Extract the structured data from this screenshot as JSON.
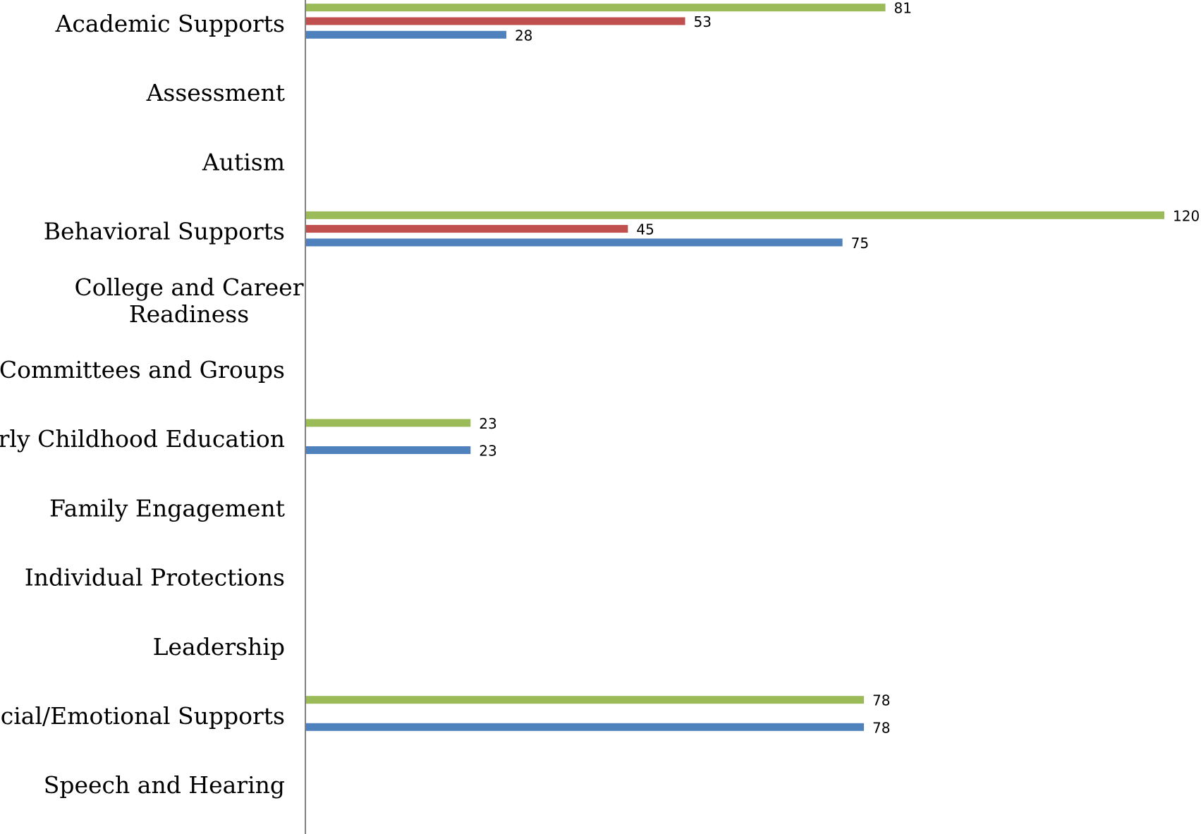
{
  "chart_data": {
    "type": "bar",
    "orientation": "horizontal",
    "categories": [
      [
        "Academic Supports"
      ],
      [
        "Assessment"
      ],
      [
        "Autism"
      ],
      [
        "Behavioral Supports"
      ],
      [
        "College and Career",
        "Readiness"
      ],
      [
        "Committees and Groups"
      ],
      [
        "Early Childhood Education"
      ],
      [
        "Family Engagement"
      ],
      [
        "Individual Protections"
      ],
      [
        "Leadership"
      ],
      [
        "Social/Emotional Supports"
      ],
      [
        "Speech and Hearing"
      ]
    ],
    "series": [
      {
        "color": "#9BBB59",
        "values": [
          81,
          null,
          null,
          120,
          null,
          null,
          23,
          null,
          null,
          null,
          78,
          null
        ]
      },
      {
        "color": "#C0504D",
        "values": [
          53,
          null,
          null,
          45,
          null,
          null,
          null,
          null,
          null,
          null,
          null,
          null
        ]
      },
      {
        "color": "#4F81BD",
        "values": [
          28,
          null,
          null,
          75,
          null,
          null,
          23,
          null,
          null,
          null,
          78,
          null
        ]
      }
    ],
    "xlim": [
      0,
      120
    ],
    "show_data_labels": true,
    "grid": false,
    "legend": "none",
    "title": "",
    "xlabel": "",
    "ylabel": ""
  }
}
